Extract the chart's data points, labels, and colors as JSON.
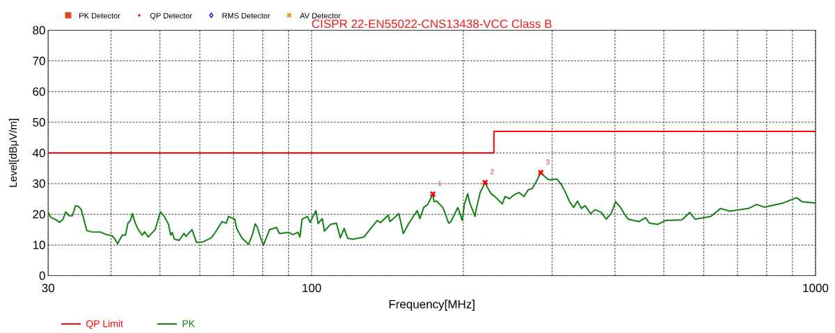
{
  "chart_data": {
    "type": "line",
    "title": "CISPR 22-EN55022-CNS13438-VCC Class B",
    "xlabel": "Frequency[MHz]",
    "ylabel": "Level[dBμV/m]",
    "log": "x",
    "grid": true,
    "legend": "bottom left",
    "xlim": [
      30,
      1000
    ],
    "ylim": [
      0,
      80
    ],
    "xticks": [
      30,
      {
        "value": 40,
        "label": null
      },
      {
        "value": 50,
        "label": null
      },
      {
        "value": 60,
        "label": null
      },
      {
        "value": 70,
        "label": null
      },
      {
        "value": 80,
        "label": null
      },
      {
        "value": 90,
        "label": null
      },
      100,
      {
        "value": 200,
        "label": null
      },
      {
        "value": 300,
        "label": null
      },
      {
        "value": 400,
        "label": null
      },
      {
        "value": 500,
        "label": null
      },
      {
        "value": 600,
        "label": null
      },
      {
        "value": 700,
        "label": null
      },
      {
        "value": 800,
        "label": null
      },
      {
        "value": 900,
        "label": null
      },
      1000
    ],
    "yticks": [
      0,
      10,
      20,
      30,
      40,
      50,
      60,
      70,
      80
    ],
    "series": [
      {
        "name": "QP Limit",
        "type": "step",
        "color": "#ff0000",
        "x": [
          30,
          230,
          1000
        ],
        "values": [
          40,
          47,
          47
        ]
      },
      {
        "name": "PK",
        "color": "#108010",
        "x": [
          30,
          30.4,
          31.1,
          31.6,
          32.1,
          32.5,
          33.0,
          33.5,
          34.0,
          34.5,
          34.9,
          35.8,
          36.5,
          38.1,
          39.0,
          40.2,
          40.7,
          41.2,
          42.1,
          42.7,
          43.2,
          43.7,
          44.1,
          44.6,
          45.2,
          46.1,
          46.6,
          47.4,
          48.9,
          50.1,
          51.0,
          52.0,
          52.5,
          52.9,
          53.4,
          54.6,
          55.8,
          56.3,
          57.9,
          59.1,
          60.9,
          63.2,
          64.4,
          66.4,
          67.7,
          68.4,
          70.4,
          71.0,
          72.7,
          75.0,
          76.4,
          77.3,
          78.0,
          78.9,
          80.2,
          81.5,
          82.5,
          85.2,
          86.3,
          90.1,
          91.7,
          94.0,
          94.8,
          95.7,
          98.1,
          99.3,
          102,
          103,
          105,
          106,
          109,
          112,
          114,
          116,
          118,
          121,
          127,
          131,
          135,
          137,
          142,
          143,
          149,
          152,
          156,
          162,
          164,
          167,
          170,
          174,
          175,
          177,
          182,
          184,
          187,
          189,
          195,
          197,
          199,
          201,
          204,
          206,
          211,
          212,
          216,
          221,
          223,
          227,
          231,
          239,
          242,
          247,
          252,
          258,
          264,
          269,
          274,
          279,
          285,
          291,
          296,
          307,
          313,
          319,
          325,
          331,
          337,
          343,
          349,
          358,
          365,
          376,
          384,
          393,
          401,
          410,
          417,
          425,
          446,
          460,
          468,
          486,
          504,
          543,
          563,
          577,
          620,
          648,
          676,
          736,
          764,
          792,
          863,
          917,
          940,
          1000
        ],
        "values": [
          20.6,
          18.9,
          18.2,
          17.4,
          18.3,
          20.8,
          19.5,
          19.5,
          22.8,
          22.5,
          21.5,
          14.7,
          14.3,
          14.2,
          13.5,
          13.0,
          11.9,
          10.4,
          13.2,
          13.2,
          17.1,
          18.0,
          20.2,
          17.4,
          15.2,
          13.2,
          14.3,
          12.6,
          15.0,
          20.8,
          19.3,
          16.7,
          13.2,
          14.1,
          11.9,
          11.5,
          13.8,
          12.8,
          15.0,
          10.8,
          11.0,
          12.3,
          14.1,
          17.6,
          17.1,
          19.3,
          18.4,
          15.4,
          12.3,
          10.2,
          13.7,
          16.9,
          15.8,
          13.2,
          9.9,
          12.8,
          15.0,
          15.7,
          13.7,
          14.1,
          13.4,
          14.1,
          12.6,
          18.4,
          19.3,
          17.4,
          21.2,
          17.0,
          18.6,
          14.5,
          16.7,
          17.1,
          12.3,
          15.4,
          12.1,
          11.9,
          12.6,
          15.4,
          18.0,
          17.3,
          19.7,
          17.6,
          20.2,
          13.7,
          17.1,
          21.2,
          18.6,
          22.3,
          23.2,
          26.6,
          24.1,
          24.3,
          22.3,
          20.4,
          17.1,
          17.6,
          22.2,
          20.2,
          18.0,
          23.2,
          26.7,
          23.7,
          19.3,
          21.5,
          27.1,
          30.4,
          28.9,
          26.7,
          25.8,
          23.4,
          25.8,
          25.1,
          26.3,
          27.1,
          25.8,
          28.0,
          28.4,
          30.6,
          33.6,
          32.1,
          31.2,
          31.5,
          29.7,
          27.1,
          24.1,
          22.2,
          24.3,
          21.9,
          22.8,
          20.2,
          21.5,
          20.6,
          18.4,
          20.2,
          24.1,
          22.3,
          20.2,
          18.4,
          17.6,
          18.9,
          17.1,
          16.7,
          18.0,
          18.2,
          20.6,
          18.4,
          19.3,
          21.9,
          21.0,
          21.9,
          23.2,
          22.3,
          23.7,
          25.4,
          24.1,
          23.7
        ]
      },
      {
        "name": "PK Detector",
        "type": "scatter",
        "color": "#dd4b1a",
        "marker": "square"
      },
      {
        "name": "QP Detector",
        "type": "scatter",
        "color": "#ff0000",
        "marker": "circle"
      },
      {
        "name": "RMS Detector",
        "type": "scatter",
        "color": "#0000ff",
        "marker": "diamond"
      },
      {
        "name": "AV Detector",
        "type": "scatter",
        "color": "#ff8c1a",
        "marker": "cross"
      },
      {
        "type": "scatter",
        "color": "#ff0000",
        "marker": "cross",
        "x": [
          174,
          221,
          285
        ],
        "values": [
          26.6,
          30.4,
          33.6
        ]
      }
    ],
    "annotations": [
      {
        "text": "1",
        "x": 174,
        "y": 26.6
      },
      {
        "text": "2",
        "x": 221,
        "y": 30.4
      },
      {
        "text": "3",
        "x": 285,
        "y": 33.6
      }
    ]
  }
}
